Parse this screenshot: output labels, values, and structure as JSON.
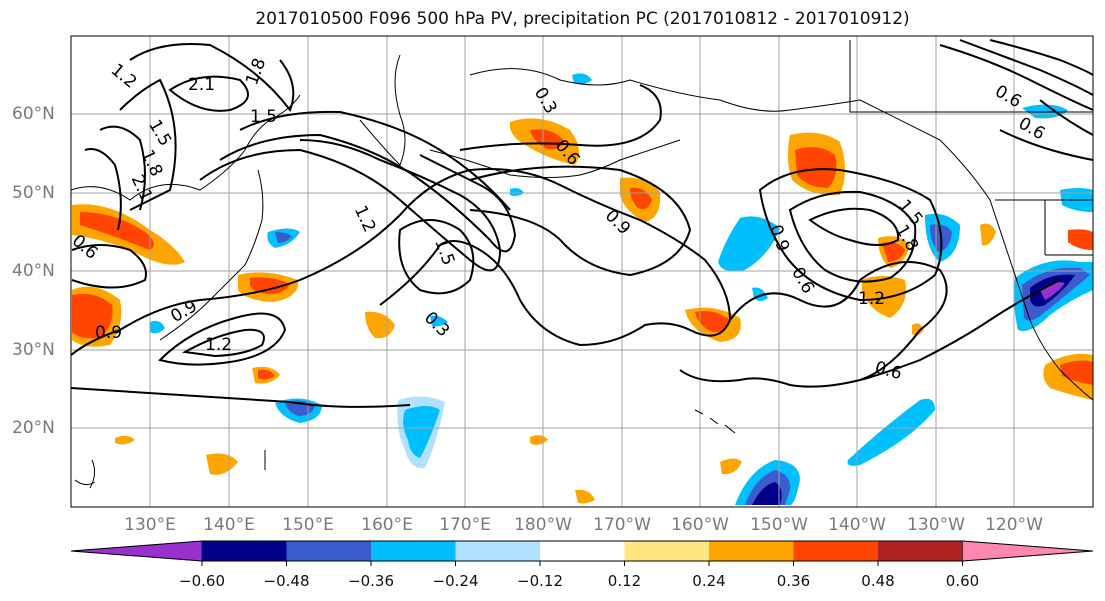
{
  "title": "2017010500 F096 500 hPa PV, precipitation PC (2017010812 - 2017010912)",
  "lat_labels": [
    "60°N",
    "50°N",
    "40°N",
    "30°N",
    "20°N"
  ],
  "lon_labels": [
    "130°E",
    "140°E",
    "150°E",
    "160°E",
    "170°E",
    "180°W",
    "170°W",
    "160°W",
    "150°W",
    "140°W",
    "130°W",
    "120°W"
  ],
  "colorbar": {
    "ticks": [
      "−0.60",
      "−0.48",
      "−0.36",
      "−0.24",
      "−0.12",
      "0.12",
      "0.24",
      "0.36",
      "0.48",
      "0.60"
    ],
    "colors": [
      "#9932cc",
      "#00008b",
      "#3a5ccc",
      "#00bfff",
      "#b0e2ff",
      "#ffffff",
      "#ffe680",
      "#ffa500",
      "#ff4500",
      "#b22222",
      "#ff86b0"
    ]
  },
  "contour_labels": [
    "1.2",
    "2.1",
    "1.8",
    "1.5",
    "1.8",
    "2.1",
    "0.6",
    "0.9",
    "1.2",
    "1.5",
    "0.9",
    "0.3",
    "0.6",
    "0.9",
    "0.6",
    "1.2",
    "1.5",
    "1.8",
    "0.6",
    "0.9",
    "1.2",
    "0.6",
    "0.6",
    "0.6",
    "0.6"
  ],
  "colors": {
    "contour": "#000000",
    "grid": "#a0a0a0",
    "coast": "#000000",
    "axis_label": "#7a7a7a"
  }
}
